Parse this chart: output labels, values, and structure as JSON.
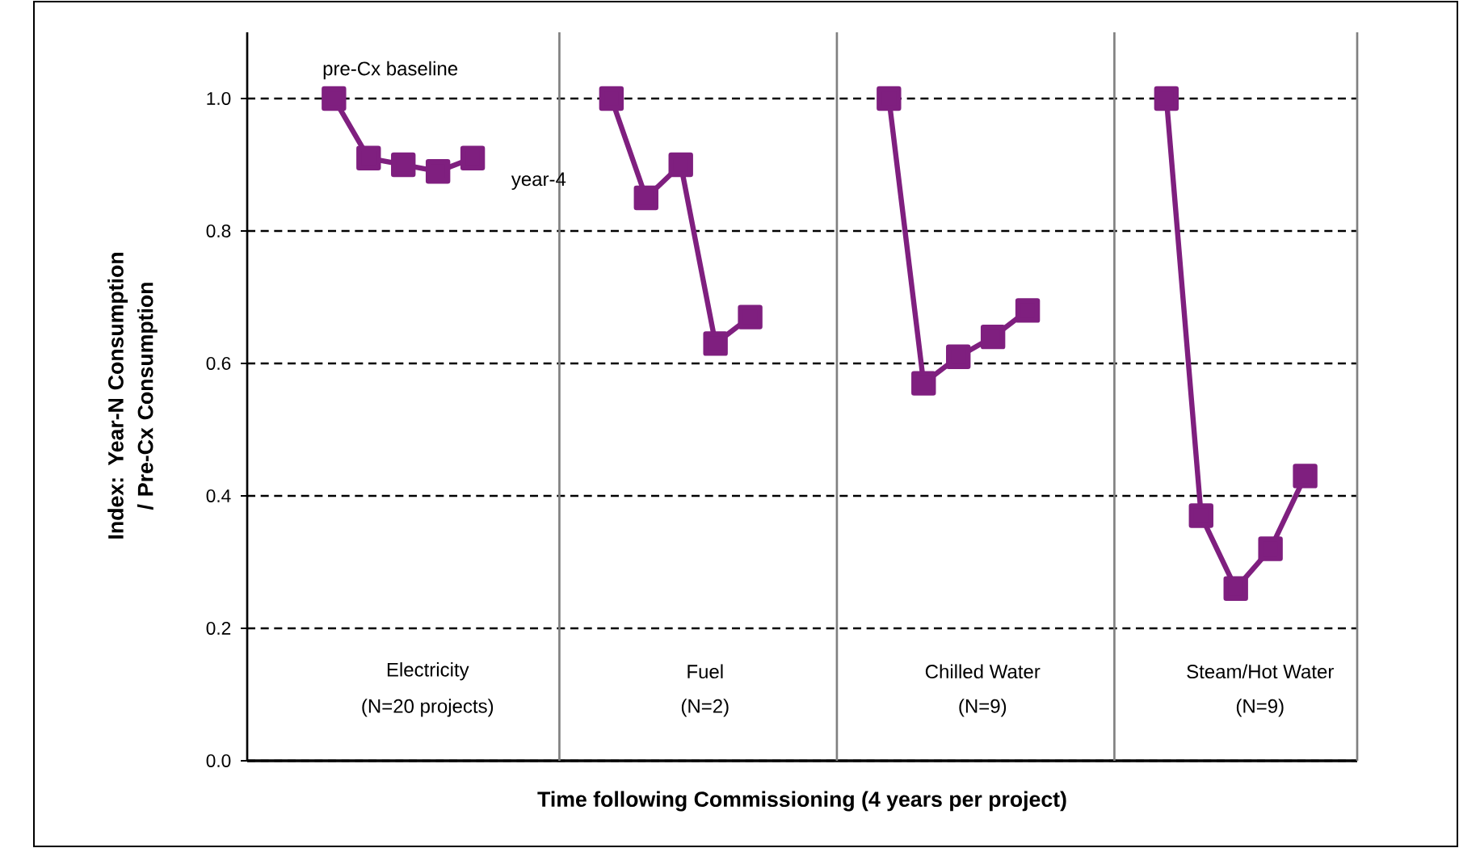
{
  "chart_data": {
    "type": "line",
    "xlabel": "Time following Commissioning (4 years per project)",
    "ylabel": "Index:   Year-N Consumption / Pre-Cx Consumption",
    "categories": [
      null,
      null,
      null,
      null,
      null,
      null,
      null,
      null,
      null,
      null,
      null,
      null,
      null,
      null,
      null,
      null,
      null,
      null,
      null,
      null,
      null,
      null,
      null,
      null,
      null,
      null,
      null,
      null,
      null,
      null,
      null,
      null
    ],
    "series": [
      {
        "color": "#7f1f7f",
        "values": [
          null,
          null,
          1.0,
          0.91,
          0.9,
          0.89,
          0.91,
          null,
          null,
          null,
          null,
          null,
          null,
          null,
          null,
          null,
          null,
          null,
          null,
          null,
          null,
          null,
          null,
          null,
          null,
          null,
          null,
          null,
          null,
          null,
          null,
          null
        ]
      },
      {
        "color": "#7f1f7f",
        "values": [
          null,
          null,
          null,
          null,
          null,
          null,
          null,
          null,
          null,
          null,
          1.0,
          0.85,
          0.9,
          0.63,
          0.67,
          null,
          null,
          null,
          null,
          null,
          null,
          null,
          null,
          null,
          null,
          null,
          null,
          null,
          null,
          null,
          null,
          null
        ]
      },
      {
        "color": "#7f1f7f",
        "values": [
          null,
          null,
          null,
          null,
          null,
          null,
          null,
          null,
          null,
          null,
          null,
          null,
          null,
          null,
          null,
          null,
          null,
          null,
          1.0,
          0.57,
          0.61,
          0.64,
          0.68,
          null,
          null,
          null,
          null,
          null,
          null,
          null,
          null,
          null
        ]
      },
      {
        "color": "#7f1f7f",
        "values": [
          null,
          null,
          null,
          null,
          null,
          null,
          null,
          null,
          null,
          null,
          null,
          null,
          null,
          null,
          null,
          null,
          null,
          null,
          null,
          null,
          null,
          null,
          null,
          null,
          null,
          null,
          1.0,
          0.37,
          0.26,
          0.32,
          0.43,
          null
        ]
      }
    ],
    "marker": "square",
    "ylim": [
      0,
      1.1
    ],
    "yticks": [
      {
        "value": 0,
        "label": "0.0"
      },
      0.2,
      0.4,
      0.6,
      0.8,
      {
        "value": 1,
        "label": "1.0"
      }
    ],
    "grid": "y",
    "annotations": [
      "pre-Cx baseline",
      "year-4",
      "Electricity",
      "(N=20 projects)",
      "Fuel",
      "(N=2)",
      "Chilled Water",
      "(N=9)",
      "Steam/Hot Water",
      "(N=9)"
    ]
  }
}
